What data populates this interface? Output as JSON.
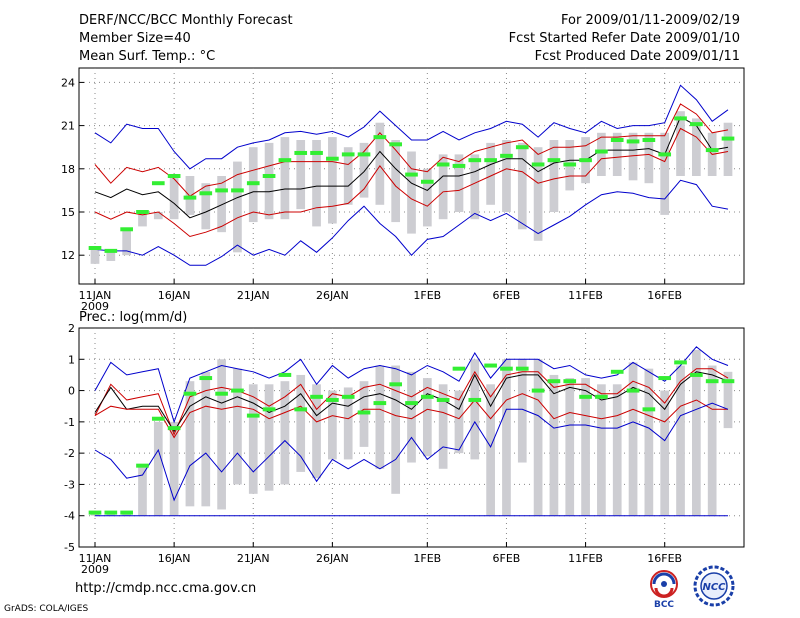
{
  "header": {
    "title": "DERF/NCC/BCC Monthly Forecast",
    "member_size": "Member Size=40",
    "variable": "Mean Surf. Temp.: °C",
    "period": "For 2009/01/11-2009/02/19",
    "refer_date": "Fcst Started Refer Date 2009/01/10",
    "produced_date": "Fcst Produced Date 2009/01/11"
  },
  "footer": {
    "url": "http://cmdp.ncc.cma.gov.cn",
    "credit": "GrADS: COLA/IGES"
  },
  "logos": {
    "bcc_text": "BCC",
    "ncc_text": "NCC"
  },
  "colors": {
    "max": "#0000cc",
    "pct": "#cc0000",
    "mean": "#000000",
    "box": "#cdcdd2",
    "obs": "#33ee33",
    "grid": "#888888"
  },
  "chart_data": [
    {
      "type": "line",
      "title": "Mean Surf. Temp.: °C",
      "xlabel": "",
      "ylabel": "",
      "ylim": [
        10,
        25
      ],
      "yticks": [
        12,
        15,
        18,
        21,
        24
      ],
      "x_tick_labels": [
        "11JAN",
        "16JAN",
        "21JAN",
        "26JAN",
        "1FEB",
        "6FEB",
        "11FEB",
        "16FEB"
      ],
      "x_tick_index": [
        0,
        5,
        10,
        15,
        21,
        26,
        31,
        36
      ],
      "year_label": "2009",
      "days": 40,
      "series": [
        {
          "name": "max",
          "values": [
            20.5,
            19.8,
            21.1,
            20.8,
            20.8,
            19.2,
            18.0,
            18.7,
            18.7,
            19.5,
            19.8,
            20.0,
            20.5,
            20.6,
            20.4,
            20.6,
            20.2,
            20.9,
            22.0,
            21.0,
            20.0,
            20.0,
            20.6,
            20.0,
            20.5,
            20.8,
            21.3,
            21.1,
            20.2,
            21.2,
            20.8,
            20.5,
            21.3,
            20.8,
            21.0,
            21.0,
            21.2,
            23.8,
            22.8,
            21.3,
            22.1
          ]
        },
        {
          "name": "p90",
          "values": [
            18.3,
            17.0,
            18.1,
            17.8,
            18.1,
            17.3,
            16.1,
            16.8,
            17.0,
            17.6,
            17.9,
            18.2,
            18.5,
            18.5,
            18.5,
            18.5,
            18.3,
            19.2,
            20.5,
            19.3,
            18.0,
            17.8,
            18.8,
            18.5,
            19.2,
            19.5,
            19.8,
            20.0,
            19.0,
            19.5,
            19.5,
            19.6,
            20.2,
            20.2,
            20.3,
            20.3,
            20.3,
            22.5,
            21.8,
            20.5,
            20.7
          ]
        },
        {
          "name": "mean",
          "values": [
            16.4,
            16.0,
            16.6,
            16.2,
            16.4,
            15.6,
            14.6,
            15.0,
            15.5,
            16.0,
            16.4,
            16.4,
            16.6,
            16.6,
            16.8,
            16.8,
            16.8,
            17.8,
            19.2,
            18.0,
            17.0,
            16.5,
            17.5,
            17.5,
            17.8,
            18.3,
            18.7,
            18.7,
            17.8,
            18.4,
            18.6,
            18.6,
            19.3,
            19.3,
            19.3,
            19.4,
            19.0,
            21.6,
            21.0,
            19.3,
            19.5
          ]
        },
        {
          "name": "p10",
          "values": [
            15.0,
            14.5,
            15.0,
            14.8,
            15.0,
            14.2,
            13.3,
            13.6,
            14.0,
            14.6,
            15.0,
            14.8,
            15.0,
            15.0,
            15.3,
            15.4,
            15.6,
            16.6,
            18.2,
            16.8,
            15.9,
            15.4,
            16.4,
            16.5,
            17.0,
            17.5,
            18.0,
            17.8,
            17.0,
            17.3,
            17.5,
            17.5,
            18.7,
            18.8,
            18.9,
            19.0,
            18.5,
            20.8,
            20.2,
            19.0,
            19.2
          ]
        },
        {
          "name": "min",
          "values": [
            12.4,
            12.3,
            12.3,
            12.0,
            12.6,
            12.0,
            11.3,
            11.3,
            11.9,
            12.7,
            12.0,
            12.4,
            12.0,
            13.0,
            12.2,
            13.2,
            14.4,
            15.4,
            14.2,
            13.3,
            12.0,
            13.1,
            13.3,
            14.1,
            14.9,
            14.4,
            14.9,
            14.2,
            13.5,
            14.1,
            14.7,
            15.5,
            16.2,
            16.4,
            16.3,
            16.0,
            15.9,
            17.2,
            16.9,
            15.4,
            15.2
          ]
        }
      ],
      "box_low": [
        11.4,
        11.6,
        12.0,
        14.0,
        14.5,
        14.5,
        14.8,
        13.8,
        13.6,
        12.2,
        14.3,
        14.5,
        14.5,
        15.2,
        14.0,
        14.2,
        15.5,
        16.0,
        15.5,
        14.3,
        13.5,
        14.0,
        14.5,
        15.0,
        14.5,
        15.5,
        15.0,
        13.8,
        13.0,
        15.0,
        16.5,
        17.0,
        17.5,
        17.5,
        17.2,
        17.0,
        14.8,
        17.5,
        17.5,
        17.5,
        17.5
      ],
      "box_high": [
        12.5,
        12.3,
        13.8,
        15.0,
        15.0,
        17.5,
        17.5,
        17.0,
        17.5,
        18.5,
        19.5,
        19.8,
        20.2,
        20.0,
        20.0,
        20.2,
        19.5,
        19.8,
        21.2,
        20.0,
        19.2,
        18.0,
        19.0,
        19.0,
        19.0,
        19.8,
        20.0,
        19.8,
        19.5,
        20.0,
        20.0,
        20.2,
        20.5,
        20.5,
        20.5,
        20.5,
        20.5,
        22.0,
        21.5,
        20.5,
        21.2
      ],
      "obs": [
        12.5,
        12.3,
        13.8,
        15.0,
        17.0,
        17.5,
        16.0,
        16.3,
        16.5,
        16.5,
        17.0,
        17.5,
        18.6,
        19.1,
        19.1,
        18.7,
        19.0,
        19.0,
        20.2,
        19.7,
        17.6,
        17.1,
        18.3,
        18.2,
        18.6,
        18.6,
        18.9,
        19.5,
        18.3,
        18.6,
        18.3,
        18.6,
        19.2,
        20.0,
        19.9,
        20.0,
        19.0,
        21.5,
        21.1,
        19.3,
        20.1
      ]
    },
    {
      "type": "line",
      "title": "Prec.: log(mm/d)",
      "xlabel": "",
      "ylabel": "",
      "ylim": [
        -5,
        2
      ],
      "yticks": [
        -5,
        -4,
        -3,
        -2,
        -1,
        0,
        1,
        2
      ],
      "x_tick_labels": [
        "11JAN",
        "16JAN",
        "21JAN",
        "26JAN",
        "1FEB",
        "6FEB",
        "11FEB",
        "16FEB"
      ],
      "x_tick_index": [
        0,
        5,
        10,
        15,
        21,
        26,
        31,
        36
      ],
      "year_label": "2009",
      "days": 40,
      "series": [
        {
          "name": "max",
          "values": [
            0.0,
            0.9,
            0.5,
            0.6,
            0.7,
            -1.0,
            0.4,
            0.6,
            0.8,
            0.7,
            0.6,
            0.4,
            0.6,
            1.0,
            0.2,
            0.8,
            0.4,
            0.7,
            0.8,
            0.7,
            0.5,
            0.8,
            0.6,
            0.3,
            1.2,
            0.4,
            1.0,
            1.0,
            1.0,
            0.7,
            0.8,
            0.5,
            0.4,
            0.5,
            0.9,
            0.6,
            0.3,
            0.8,
            1.4,
            1.0,
            0.8
          ]
        },
        {
          "name": "p90",
          "values": [
            -0.8,
            0.2,
            -0.3,
            -0.2,
            -0.1,
            -1.4,
            -0.2,
            0.0,
            0.1,
            0.0,
            -0.2,
            -0.5,
            -0.2,
            0.2,
            -0.6,
            -0.1,
            -0.2,
            0.1,
            0.2,
            0.0,
            -0.2,
            0.1,
            -0.1,
            -0.3,
            0.6,
            -0.2,
            0.5,
            0.6,
            0.6,
            0.1,
            0.2,
            0.2,
            -0.1,
            -0.1,
            0.3,
            0.1,
            -0.4,
            0.3,
            0.7,
            0.7,
            0.4
          ]
        },
        {
          "name": "mean",
          "values": [
            -0.7,
            0.1,
            -0.6,
            -0.5,
            -0.5,
            -1.3,
            -0.5,
            -0.2,
            -0.4,
            -0.2,
            -0.4,
            -0.7,
            -0.5,
            -0.1,
            -0.8,
            -0.4,
            -0.5,
            -0.2,
            -0.1,
            -0.3,
            -0.6,
            -0.1,
            -0.3,
            -0.6,
            0.5,
            -0.5,
            0.4,
            0.5,
            0.5,
            -0.1,
            0.1,
            0.0,
            -0.3,
            -0.2,
            0.1,
            -0.1,
            -0.6,
            0.2,
            0.6,
            0.5,
            0.3
          ]
        },
        {
          "name": "p10",
          "values": [
            -0.8,
            -0.5,
            -0.6,
            -0.6,
            -0.6,
            -1.5,
            -0.7,
            -0.5,
            -0.6,
            -0.5,
            -0.6,
            -0.9,
            -0.7,
            -0.5,
            -1.0,
            -0.8,
            -0.9,
            -0.6,
            -0.6,
            -0.8,
            -0.9,
            -0.6,
            -0.7,
            -0.9,
            -0.3,
            -0.9,
            -0.3,
            -0.1,
            -0.3,
            -0.9,
            -0.7,
            -0.8,
            -0.9,
            -0.8,
            -0.6,
            -0.8,
            -1.0,
            -0.5,
            -0.3,
            -0.6,
            -0.6
          ]
        },
        {
          "name": "min",
          "values": [
            -1.9,
            -2.2,
            -2.8,
            -2.7,
            -1.9,
            -3.5,
            -2.4,
            -2.0,
            -2.6,
            -2.0,
            -2.6,
            -2.1,
            -1.6,
            -2.1,
            -2.9,
            -2.2,
            -2.5,
            -2.2,
            -2.5,
            -2.2,
            -1.5,
            -2.2,
            -1.8,
            -1.9,
            -1.0,
            -1.8,
            -0.6,
            -0.6,
            -0.8,
            -1.2,
            -1.1,
            -1.1,
            -1.2,
            -1.2,
            -1.0,
            -1.2,
            -1.6,
            -0.8,
            -0.6,
            -0.4,
            -0.6
          ]
        },
        {
          "name": "zero",
          "values": [
            -4.0,
            -4.0,
            -4.0,
            -4.0,
            -4.0,
            -4.0,
            -4.0,
            -4.0,
            -4.0,
            -4.0,
            -4.0,
            -4.0,
            -4.0,
            -4.0,
            -4.0,
            -4.0,
            -4.0,
            -4.0,
            -4.0,
            -4.0,
            -4.0,
            -4.0,
            -4.0,
            -4.0,
            -4.0,
            -4.0,
            -4.0,
            -4.0,
            -4.0,
            -4.0,
            -4.0,
            -4.0,
            -4.0,
            -4.0,
            -4.0,
            -4.0,
            -4.0,
            -4.0,
            -4.0,
            -4.0,
            -4.0
          ]
        }
      ],
      "box_low": [
        -4.0,
        -4.0,
        -4.0,
        -4.0,
        -4.0,
        -4.0,
        -3.7,
        -3.7,
        -3.8,
        -3.0,
        -3.3,
        -3.2,
        -3.0,
        -2.6,
        -2.8,
        -2.2,
        -2.2,
        -1.8,
        -2.5,
        -3.3,
        -2.3,
        -2.1,
        -2.5,
        -2.0,
        -2.2,
        -4.0,
        -4.0,
        -2.3,
        -4.0,
        -4.0,
        -4.0,
        -4.0,
        -4.0,
        -4.0,
        -4.0,
        -4.0,
        -4.0,
        -4.0,
        -4.0,
        -4.0,
        -1.2
      ],
      "box_high": [
        -3.9,
        -3.9,
        -3.9,
        -2.4,
        -1.0,
        -1.0,
        0.3,
        0.6,
        1.0,
        0.7,
        0.2,
        0.2,
        0.3,
        0.5,
        0.2,
        0.0,
        0.1,
        0.3,
        0.8,
        0.8,
        0.6,
        0.4,
        0.2,
        0.0,
        1.0,
        0.2,
        1.0,
        1.0,
        1.0,
        0.5,
        0.4,
        0.4,
        0.2,
        0.2,
        0.9,
        0.7,
        0.0,
        0.8,
        1.3,
        0.8,
        0.6
      ],
      "obs": [
        -3.9,
        -3.9,
        -3.9,
        -2.4,
        -0.9,
        -1.2,
        -0.1,
        0.4,
        -0.1,
        0.0,
        -0.8,
        -0.6,
        0.5,
        -0.6,
        -0.2,
        -0.3,
        -0.2,
        -0.7,
        -0.4,
        0.2,
        -0.4,
        -0.2,
        -0.3,
        0.7,
        -0.3,
        0.8,
        0.7,
        0.7,
        0.0,
        0.3,
        0.3,
        -0.2,
        -0.2,
        0.6,
        0.0,
        -0.6,
        0.4,
        0.9,
        0.5,
        0.3,
        0.3
      ]
    }
  ]
}
